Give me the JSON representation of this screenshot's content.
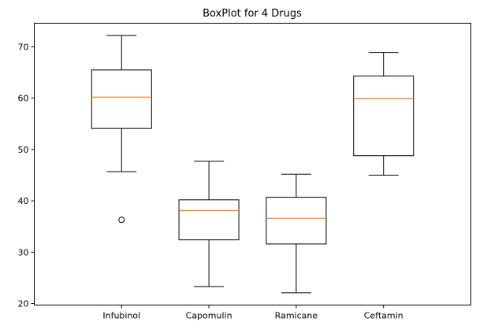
{
  "chart_data": {
    "type": "box",
    "title": "BoxPlot for 4 Drugs",
    "xlabel": "",
    "ylabel": "",
    "ylim": [
      19.7,
      74.6
    ],
    "yticks": [
      20,
      30,
      40,
      50,
      60,
      70
    ],
    "grid": false,
    "categories": [
      "Infubinol",
      "Capomulin",
      "Ramicane",
      "Ceftamin"
    ],
    "boxes": [
      {
        "category": "Infubinol",
        "whisker_low": 45.7,
        "q1": 54.1,
        "median": 60.2,
        "q3": 65.5,
        "whisker_high": 72.2,
        "outliers": [
          36.3
        ]
      },
      {
        "category": "Capomulin",
        "whisker_low": 23.3,
        "q1": 32.4,
        "median": 38.1,
        "q3": 40.2,
        "whisker_high": 47.7,
        "outliers": []
      },
      {
        "category": "Ramicane",
        "whisker_low": 22.1,
        "q1": 31.6,
        "median": 36.6,
        "q3": 40.7,
        "whisker_high": 45.2,
        "outliers": []
      },
      {
        "category": "Ceftamin",
        "whisker_low": 45.0,
        "q1": 48.8,
        "median": 59.9,
        "q3": 64.3,
        "whisker_high": 68.9,
        "outliers": []
      }
    ],
    "colors": {
      "box": "#000000",
      "median": "#ff7f0e",
      "frame": "#000000"
    }
  }
}
